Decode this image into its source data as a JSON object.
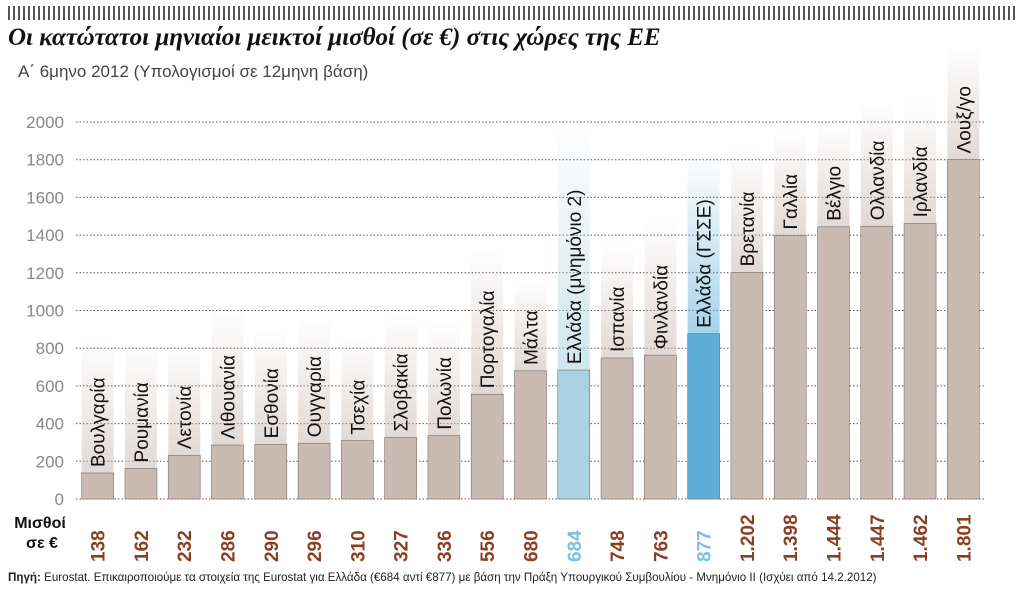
{
  "title": "Οι κατώτατοι μηνιαίοι μεικτοί μισθοί (σε €) στις χώρες της ΕΕ",
  "subtitle": "Α΄ 6μηνο 2012 (Υπολογισμοί σε 12μηνη βάση)",
  "value_row_label_1": "Μισθοί",
  "value_row_label_2": "σε €",
  "source_label": "Πηγή:",
  "source_text": "Eurostat. Επικαιροποιούμε τα στοιχεία της Eurostat για Ελλάδα (€684 αντί €877) με βάση την Πράξη Υπουργικού Συμβουλίου - Μνημόνιο ΙΙ (Ισχύει από 14.2.2012)",
  "colors": {
    "bar": "#c9bab2",
    "bar_stroke": "#7a6e68",
    "greece_memo": "#a9d1e2",
    "greece_gsee": "#5eaed6",
    "value_text": "#8b3f22",
    "greece_value_text": "#7cc0dc",
    "grid": "#555555",
    "axis_text": "#888888"
  },
  "chart_data": {
    "type": "bar",
    "title": "Οι κατώτατοι μηνιαίοι μεικτοί μισθοί (σε €) στις χώρες της ΕΕ",
    "subtitle": "Α΄ 6μηνο 2012 (Υπολογισμοί σε 12μηνη βάση)",
    "ylim": [
      0,
      2000
    ],
    "yticks": [
      0,
      200,
      400,
      600,
      800,
      1000,
      1200,
      1400,
      1600,
      1800,
      2000
    ],
    "grid": true,
    "categories": [
      "Βουλγαρία",
      "Ρουμανία",
      "Λετονία",
      "Λιθουανία",
      "Εσθονία",
      "Ουγγαρία",
      "Τσεχία",
      "Σλοβακία",
      "Πολωνία",
      "Πορτογαλία",
      "Μάλτα",
      "Ελλάδα (μνημόνιο 2)",
      "Ισπανία",
      "Φινλανδία",
      "Ελλάδα (ΓΣΣΕ)",
      "Βρετανία",
      "Γαλλία",
      "Βέλγιο",
      "Ολλανδία",
      "Ιρλανδία",
      "Λουξ/γο"
    ],
    "values": [
      138,
      162,
      232,
      286,
      290,
      296,
      310,
      327,
      336,
      556,
      680,
      684,
      748,
      763,
      877,
      1202,
      1398,
      1444,
      1447,
      1462,
      1801
    ],
    "value_labels": [
      "138",
      "162",
      "232",
      "286",
      "290",
      "296",
      "310",
      "327",
      "336",
      "556",
      "680",
      "684",
      "748",
      "763",
      "877",
      "1.202",
      "1.398",
      "1.444",
      "1.447",
      "1.462",
      "1.801"
    ],
    "highlight": [
      "",
      "",
      "",
      "",
      "",
      "",
      "",
      "",
      "",
      "",
      "",
      "memo",
      "",
      "",
      "gsee",
      "",
      "",
      "",
      "",
      "",
      ""
    ]
  }
}
